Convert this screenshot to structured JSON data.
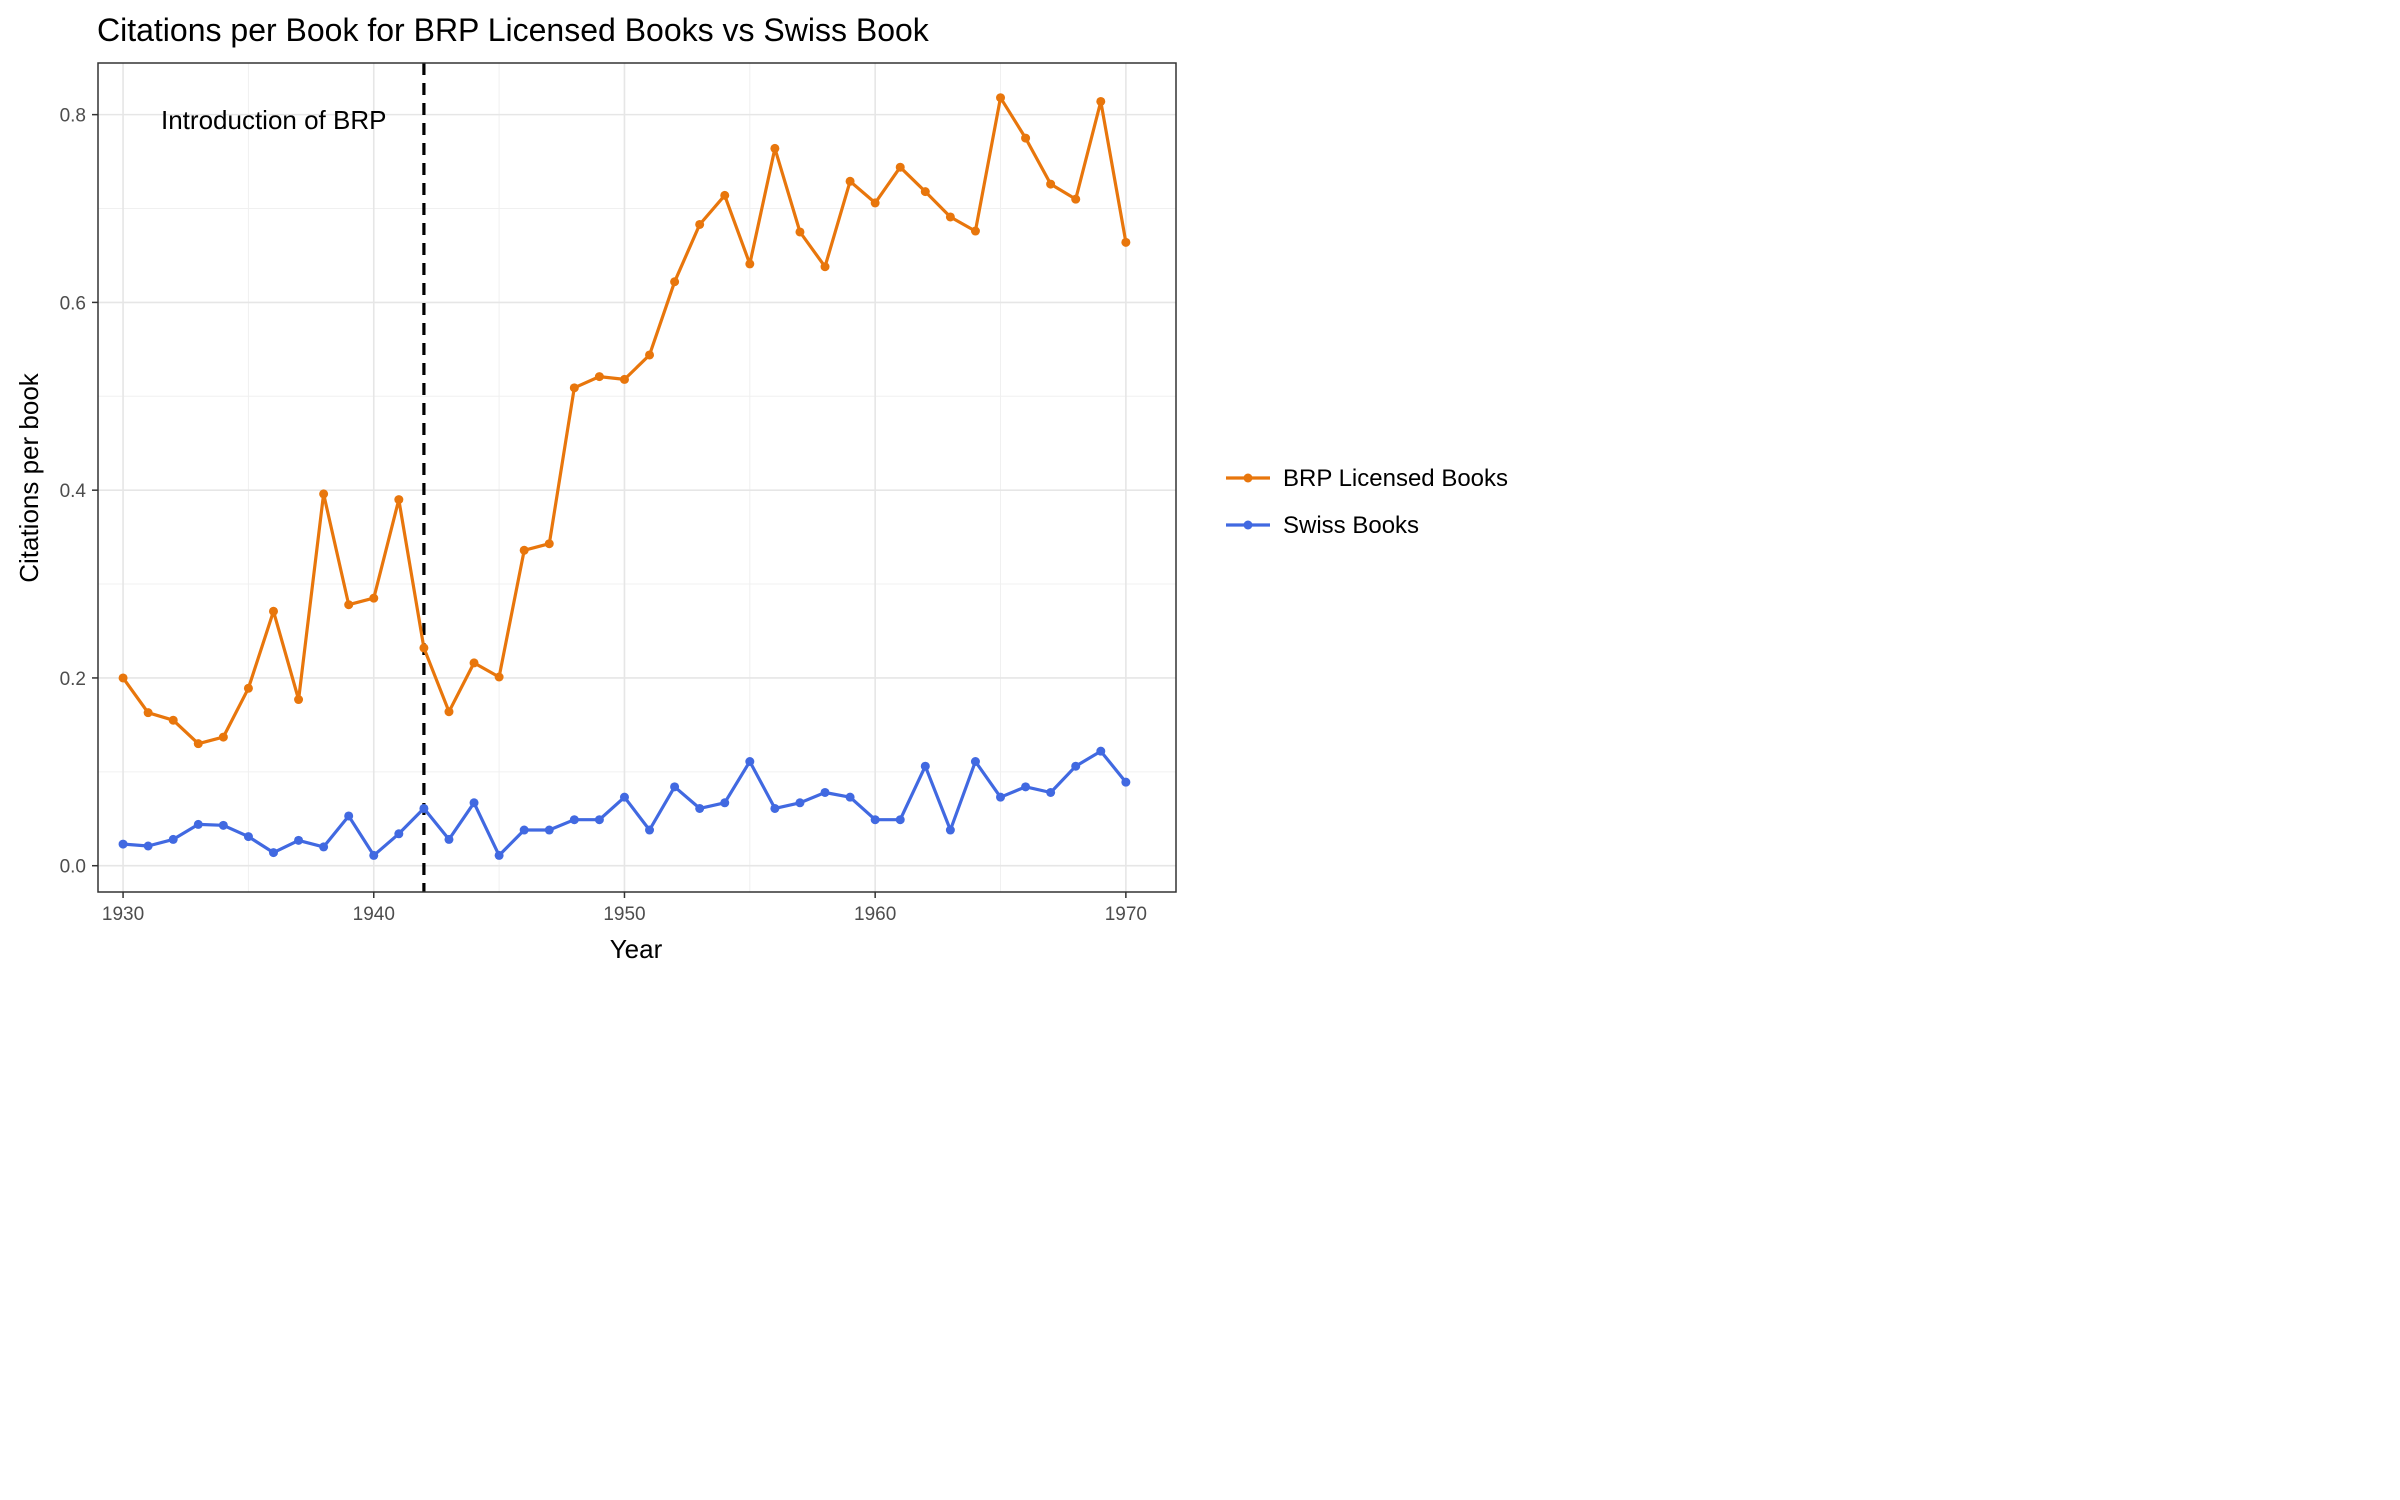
{
  "chart_data": {
    "type": "line",
    "title": "Citations per Book for BRP Licensed Books vs Swiss Book",
    "xlabel": "Year",
    "ylabel": "Citations per book",
    "xlim": [
      1929,
      1972
    ],
    "ylim": [
      -0.028,
      0.855
    ],
    "x_ticks": [
      1930,
      1940,
      1950,
      1960,
      1970
    ],
    "y_ticks": [
      0.0,
      0.2,
      0.4,
      0.6,
      0.8
    ],
    "y_tick_labels": [
      "0.0",
      "0.2",
      "0.4",
      "0.6",
      "0.8"
    ],
    "grid": true,
    "legend_position": "right",
    "x": [
      1930,
      1931,
      1932,
      1933,
      1934,
      1935,
      1936,
      1937,
      1938,
      1939,
      1940,
      1941,
      1942,
      1943,
      1944,
      1945,
      1946,
      1947,
      1948,
      1949,
      1950,
      1951,
      1952,
      1953,
      1954,
      1955,
      1956,
      1957,
      1958,
      1959,
      1960,
      1961,
      1962,
      1963,
      1964,
      1965,
      1966,
      1967,
      1968,
      1969,
      1970
    ],
    "series": [
      {
        "name": "BRP Licensed Books",
        "color": "#E8760C",
        "values": [
          0.2,
          0.163,
          0.155,
          0.13,
          0.137,
          0.189,
          0.271,
          0.177,
          0.396,
          0.278,
          0.285,
          0.39,
          0.232,
          0.164,
          0.216,
          0.201,
          0.336,
          0.343,
          0.509,
          0.521,
          0.518,
          0.544,
          0.622,
          0.683,
          0.714,
          0.641,
          0.764,
          0.675,
          0.638,
          0.729,
          0.706,
          0.744,
          0.718,
          0.691,
          0.676,
          0.818,
          0.775,
          0.726,
          0.71,
          0.814,
          0.664
        ]
      },
      {
        "name": "Swiss Books",
        "color": "#4169E1",
        "values": [
          0.023,
          0.021,
          0.028,
          0.044,
          0.043,
          0.031,
          0.014,
          0.027,
          0.02,
          0.053,
          0.011,
          0.034,
          0.061,
          0.028,
          0.067,
          0.011,
          0.038,
          0.038,
          0.049,
          0.049,
          0.073,
          0.038,
          0.084,
          0.061,
          0.067,
          0.111,
          0.061,
          0.067,
          0.078,
          0.073,
          0.049,
          0.049,
          0.106,
          0.038,
          0.111,
          0.073,
          0.084,
          0.078,
          0.106,
          0.122,
          0.089
        ]
      }
    ],
    "vline": {
      "x": 1942,
      "label": "Introduction of BRP",
      "color": "#000000"
    }
  }
}
